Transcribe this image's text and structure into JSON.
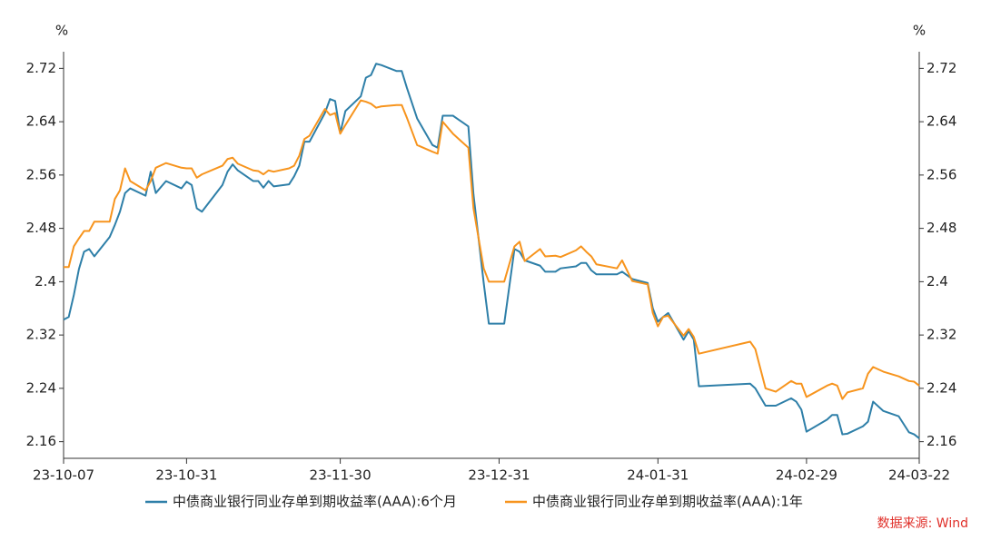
{
  "chart_data": {
    "type": "line",
    "y_unit": "%",
    "y2_unit": "%",
    "x": [
      "23-10-07",
      "23-10-08",
      "23-10-09",
      "23-10-10",
      "23-10-11",
      "23-10-12",
      "23-10-13",
      "23-10-16",
      "23-10-17",
      "23-10-18",
      "23-10-19",
      "23-10-20",
      "23-10-23",
      "23-10-24",
      "23-10-25",
      "23-10-27",
      "23-10-30",
      "23-10-31",
      "23-11-01",
      "23-11-02",
      "23-11-03",
      "23-11-07",
      "23-11-08",
      "23-11-09",
      "23-11-10",
      "23-11-13",
      "23-11-14",
      "23-11-15",
      "23-11-16",
      "23-11-17",
      "23-11-20",
      "23-11-21",
      "23-11-22",
      "23-11-23",
      "23-11-24",
      "23-11-27",
      "23-11-28",
      "23-11-29",
      "23-11-30",
      "23-12-01",
      "23-12-04",
      "23-12-05",
      "23-12-06",
      "23-12-07",
      "23-12-08",
      "23-12-11",
      "23-12-12",
      "23-12-13",
      "23-12-15",
      "23-12-18",
      "23-12-19",
      "23-12-20",
      "23-12-22",
      "23-12-25",
      "23-12-26",
      "23-12-28",
      "23-12-29",
      "24-01-01",
      "24-01-03",
      "24-01-04",
      "24-01-05",
      "24-01-08",
      "24-01-09",
      "24-01-11",
      "24-01-12",
      "24-01-15",
      "24-01-16",
      "24-01-17",
      "24-01-18",
      "24-01-19",
      "24-01-23",
      "24-01-24",
      "24-01-26",
      "24-01-29",
      "24-01-30",
      "24-01-31",
      "24-02-01",
      "24-02-02",
      "24-02-05",
      "24-02-06",
      "24-02-07",
      "24-02-08",
      "24-02-18",
      "24-02-19",
      "24-02-21",
      "24-02-23",
      "24-02-26",
      "24-02-27",
      "24-02-28",
      "24-02-29",
      "24-03-04",
      "24-03-05",
      "24-03-06",
      "24-03-07",
      "24-03-08",
      "24-03-11",
      "24-03-12",
      "24-03-13",
      "24-03-15",
      "24-03-18",
      "24-03-20",
      "24-03-21",
      "24-03-22"
    ],
    "series": [
      {
        "name": "中债商业银行同业存单到期收益率(AAA):6个月",
        "color": "#2e7fa8",
        "values": [
          2.343,
          2.347,
          2.38,
          2.419,
          2.445,
          2.449,
          2.438,
          2.467,
          2.485,
          2.505,
          2.533,
          2.54,
          2.529,
          2.565,
          2.533,
          2.551,
          2.54,
          2.55,
          2.545,
          2.51,
          2.505,
          2.545,
          2.565,
          2.576,
          2.567,
          2.551,
          2.551,
          2.541,
          2.551,
          2.543,
          2.546,
          2.558,
          2.574,
          2.61,
          2.61,
          2.653,
          2.674,
          2.671,
          2.623,
          2.656,
          2.678,
          2.706,
          2.71,
          2.727,
          2.725,
          2.716,
          2.716,
          2.691,
          2.645,
          2.605,
          2.601,
          2.649,
          2.649,
          2.633,
          2.531,
          2.398,
          2.337,
          2.337,
          2.449,
          2.445,
          2.432,
          2.424,
          2.415,
          2.415,
          2.42,
          2.423,
          2.428,
          2.428,
          2.417,
          2.411,
          2.411,
          2.415,
          2.404,
          2.398,
          2.36,
          2.34,
          2.347,
          2.353,
          2.313,
          2.326,
          2.313,
          2.243,
          2.247,
          2.24,
          2.214,
          2.214,
          2.225,
          2.22,
          2.208,
          2.175,
          2.193,
          2.2,
          2.2,
          2.171,
          2.172,
          2.183,
          2.19,
          2.22,
          2.206,
          2.198,
          2.174,
          2.171,
          2.165
        ]
      },
      {
        "name": "中债商业银行同业存单到期收益率(AAA):1年",
        "color": "#f7941d",
        "values": [
          2.422,
          2.422,
          2.453,
          2.465,
          2.476,
          2.476,
          2.49,
          2.49,
          2.524,
          2.537,
          2.57,
          2.551,
          2.537,
          2.551,
          2.571,
          2.578,
          2.571,
          2.57,
          2.57,
          2.556,
          2.561,
          2.574,
          2.584,
          2.586,
          2.577,
          2.567,
          2.566,
          2.561,
          2.567,
          2.565,
          2.57,
          2.574,
          2.589,
          2.614,
          2.619,
          2.659,
          2.65,
          2.653,
          2.622,
          2.635,
          2.672,
          2.67,
          2.667,
          2.661,
          2.663,
          2.665,
          2.665,
          2.646,
          2.605,
          2.595,
          2.592,
          2.64,
          2.622,
          2.601,
          2.51,
          2.42,
          2.4,
          2.4,
          2.453,
          2.46,
          2.431,
          2.449,
          2.438,
          2.439,
          2.437,
          2.447,
          2.453,
          2.445,
          2.438,
          2.426,
          2.42,
          2.432,
          2.401,
          2.396,
          2.353,
          2.333,
          2.347,
          2.349,
          2.319,
          2.329,
          2.317,
          2.292,
          2.31,
          2.299,
          2.24,
          2.235,
          2.251,
          2.247,
          2.247,
          2.227,
          2.244,
          2.247,
          2.244,
          2.224,
          2.234,
          2.24,
          2.262,
          2.272,
          2.265,
          2.258,
          2.251,
          2.25,
          2.244
        ]
      }
    ],
    "xlim": [
      "23-10-07",
      "24-03-22"
    ],
    "xticks": [
      "23-10-07",
      "23-10-31",
      "23-11-30",
      "23-12-31",
      "24-01-31",
      "24-02-29",
      "24-03-22"
    ],
    "ylim": [
      2.135,
      2.745
    ],
    "yticks": [
      2.16,
      2.24,
      2.32,
      2.4,
      2.48,
      2.56,
      2.64,
      2.72
    ],
    "y2lim": [
      2.135,
      2.745
    ],
    "y2ticks": [
      2.16,
      2.24,
      2.32,
      2.4,
      2.48,
      2.56,
      2.64,
      2.72
    ],
    "grid": false,
    "legend": "bottom",
    "source": "数据来源: Wind",
    "source_color": "#e0302a"
  }
}
